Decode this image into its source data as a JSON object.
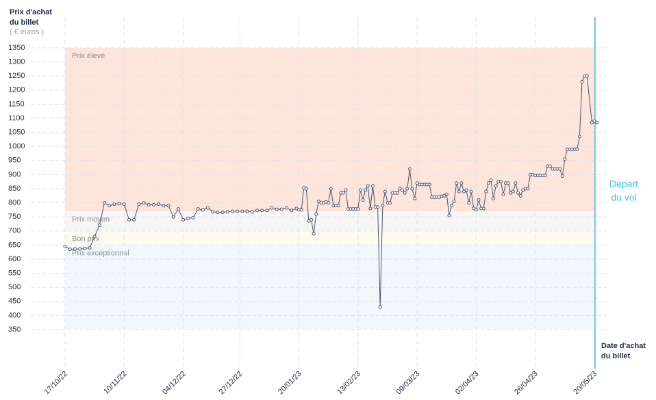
{
  "chart_data": {
    "type": "line",
    "y_title": [
      "Prix d'achat",
      "du billet"
    ],
    "y_unit": "( € euros )",
    "x_title": [
      "Date d'achat",
      "du billet"
    ],
    "annotation": {
      "lines": [
        "Départ",
        "du vol"
      ],
      "x": "2023-05-20",
      "color": "#3cc4d8"
    },
    "line_color": "#4a5468",
    "ylim": [
      350,
      1350
    ],
    "yticks": [
      350,
      400,
      450,
      500,
      550,
      600,
      650,
      700,
      750,
      800,
      850,
      900,
      950,
      1000,
      1050,
      1100,
      1150,
      1200,
      1250,
      1300,
      1350
    ],
    "xlim": [
      "2022-10-17",
      "2023-05-20"
    ],
    "xticks": [
      {
        "value": "2022-10-17",
        "label": "17/10/22"
      },
      {
        "value": "2022-11-10",
        "label": "10/11/22"
      },
      {
        "value": "2022-12-04",
        "label": "04/12/22"
      },
      {
        "value": "2022-12-27",
        "label": "27/12/22"
      },
      {
        "value": "2023-01-20",
        "label": "20/01/23"
      },
      {
        "value": "2023-02-13",
        "label": "13/02/23"
      },
      {
        "value": "2023-03-09",
        "label": "09/03/23"
      },
      {
        "value": "2023-04-02",
        "label": "02/04/23"
      },
      {
        "value": "2023-04-26",
        "label": "26/04/23"
      },
      {
        "value": "2023-05-20",
        "label": "20/05/23"
      }
    ],
    "grid": true,
    "zones": [
      {
        "name": "Prix élevé",
        "from": 770,
        "to": 1350,
        "color": "#fde5dc"
      },
      {
        "name": "Prix moyen",
        "from": 700,
        "to": 770,
        "color": "#f6f6f6"
      },
      {
        "name": "Bon prix",
        "from": 650,
        "to": 700,
        "color": "#fdfaee"
      },
      {
        "name": "Prix exceptionnel",
        "from": 350,
        "to": 650,
        "color": "#f1f8fc"
      }
    ],
    "x": [
      "2022-10-17",
      "2022-10-19",
      "2022-10-21",
      "2022-10-23",
      "2022-10-25",
      "2022-10-27",
      "2022-10-29",
      "2022-10-31",
      "2022-11-02",
      "2022-11-04",
      "2022-11-06",
      "2022-11-08",
      "2022-11-10",
      "2022-11-12",
      "2022-11-14",
      "2022-11-16",
      "2022-11-18",
      "2022-11-20",
      "2022-11-22",
      "2022-11-24",
      "2022-11-26",
      "2022-11-28",
      "2022-11-30",
      "2022-12-02",
      "2022-12-04",
      "2022-12-06",
      "2022-12-08",
      "2022-12-10",
      "2022-12-12",
      "2022-12-14",
      "2022-12-16",
      "2022-12-18",
      "2022-12-20",
      "2022-12-22",
      "2022-12-24",
      "2022-12-26",
      "2022-12-28",
      "2022-12-30",
      "2023-01-01",
      "2023-01-03",
      "2023-01-05",
      "2023-01-07",
      "2023-01-09",
      "2023-01-11",
      "2023-01-13",
      "2023-01-15",
      "2023-01-17",
      "2023-01-19",
      "2023-01-20",
      "2023-01-21",
      "2023-01-22",
      "2023-01-23",
      "2023-01-24",
      "2023-01-25",
      "2023-01-26",
      "2023-01-27",
      "2023-01-28",
      "2023-01-29",
      "2023-01-30",
      "2023-01-31",
      "2023-02-01",
      "2023-02-02",
      "2023-02-03",
      "2023-02-04",
      "2023-02-05",
      "2023-02-06",
      "2023-02-07",
      "2023-02-08",
      "2023-02-09",
      "2023-02-10",
      "2023-02-11",
      "2023-02-12",
      "2023-02-13",
      "2023-02-14",
      "2023-02-15",
      "2023-02-16",
      "2023-02-17",
      "2023-02-18",
      "2023-02-19",
      "2023-02-20",
      "2023-02-21",
      "2023-02-22",
      "2023-02-23",
      "2023-02-24",
      "2023-02-25",
      "2023-02-26",
      "2023-02-27",
      "2023-02-28",
      "2023-03-01",
      "2023-03-02",
      "2023-03-03",
      "2023-03-04",
      "2023-03-05",
      "2023-03-06",
      "2023-03-07",
      "2023-03-08",
      "2023-03-09",
      "2023-03-10",
      "2023-03-11",
      "2023-03-12",
      "2023-03-13",
      "2023-03-14",
      "2023-03-15",
      "2023-03-16",
      "2023-03-17",
      "2023-03-18",
      "2023-03-19",
      "2023-03-20",
      "2023-03-21",
      "2023-03-22",
      "2023-03-23",
      "2023-03-24",
      "2023-03-25",
      "2023-03-26",
      "2023-03-27",
      "2023-03-28",
      "2023-03-29",
      "2023-03-30",
      "2023-03-31",
      "2023-04-01",
      "2023-04-02",
      "2023-04-03",
      "2023-04-04",
      "2023-04-05",
      "2023-04-06",
      "2023-04-07",
      "2023-04-08",
      "2023-04-09",
      "2023-04-10",
      "2023-04-11",
      "2023-04-12",
      "2023-04-13",
      "2023-04-14",
      "2023-04-15",
      "2023-04-16",
      "2023-04-17",
      "2023-04-18",
      "2023-04-19",
      "2023-04-20",
      "2023-04-21",
      "2023-04-22",
      "2023-04-23",
      "2023-04-24",
      "2023-04-25",
      "2023-04-26",
      "2023-04-27",
      "2023-04-28",
      "2023-04-29",
      "2023-04-30",
      "2023-05-01",
      "2023-05-02",
      "2023-05-03",
      "2023-05-04",
      "2023-05-05",
      "2023-05-06",
      "2023-05-07",
      "2023-05-08",
      "2023-05-09",
      "2023-05-10",
      "2023-05-11",
      "2023-05-12",
      "2023-05-13",
      "2023-05-14",
      "2023-05-15",
      "2023-05-16",
      "2023-05-17",
      "2023-05-19",
      "2023-05-20",
      "2023-05-21"
    ],
    "values": [
      645,
      635,
      636,
      636,
      638,
      640,
      680,
      720,
      800,
      790,
      795,
      797,
      795,
      740,
      740,
      795,
      800,
      793,
      793,
      795,
      790,
      790,
      750,
      778,
      740,
      745,
      747,
      778,
      775,
      782,
      768,
      766,
      766,
      768,
      770,
      770,
      770,
      770,
      768,
      773,
      773,
      773,
      782,
      777,
      777,
      782,
      773,
      780,
      775,
      775,
      853,
      850,
      735,
      740,
      690,
      760,
      805,
      800,
      800,
      803,
      800,
      850,
      790,
      790,
      790,
      835,
      835,
      845,
      778,
      778,
      778,
      778,
      778,
      845,
      810,
      845,
      860,
      780,
      860,
      785,
      785,
      430,
      790,
      840,
      800,
      800,
      835,
      835,
      835,
      850,
      845,
      835,
      850,
      920,
      850,
      815,
      870,
      865,
      865,
      865,
      865,
      865,
      820,
      820,
      820,
      820,
      823,
      825,
      830,
      755,
      790,
      805,
      870,
      840,
      870,
      840,
      845,
      800,
      840,
      780,
      775,
      810,
      780,
      780,
      840,
      870,
      880,
      815,
      860,
      875,
      875,
      830,
      870,
      870,
      835,
      840,
      870,
      835,
      825,
      845,
      850,
      850,
      900,
      900,
      897,
      897,
      897,
      897,
      897,
      930,
      930,
      920,
      920,
      920,
      920,
      895,
      955,
      990,
      990,
      990,
      990,
      990,
      1035,
      1230,
      1250,
      1250,
      1085,
      1090,
      1085
    ]
  }
}
